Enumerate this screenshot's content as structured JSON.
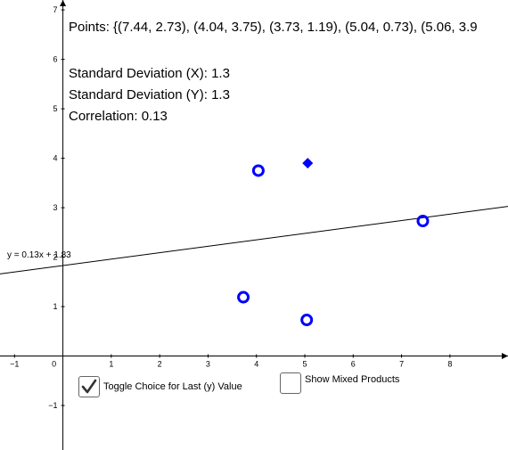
{
  "points_text": "Points: {(7.44, 2.73), (4.04, 3.75), (3.73, 1.19), (5.04, 0.73), (5.06, 3.9",
  "std_x_text": "Standard Deviation (X): 1.3",
  "std_y_text": "Standard Deviation (Y): 1.3",
  "correlation_text": "Correlation: 0.13",
  "line_label": "y = 0.13x + 1.83",
  "checkboxes": [
    {
      "label": "Toggle Choice for Last (y) Value",
      "checked": true
    },
    {
      "label": "Show Mixed Products",
      "checked": false
    }
  ],
  "colors": {
    "points": "#0000ff",
    "axes": "#000000"
  },
  "chart_data": {
    "type": "scatter",
    "xlim": [
      -1.3,
      9.2
    ],
    "ylim": [
      -1.9,
      7.2
    ],
    "x_ticks": [
      -1,
      1,
      2,
      3,
      4,
      5,
      6,
      7,
      8
    ],
    "y_ticks": [
      -1,
      1,
      2,
      3,
      4,
      5,
      6,
      7
    ],
    "origin_label": "0",
    "points": [
      {
        "x": 7.44,
        "y": 2.73
      },
      {
        "x": 4.04,
        "y": 3.75
      },
      {
        "x": 3.73,
        "y": 1.19
      },
      {
        "x": 5.04,
        "y": 0.73
      }
    ],
    "highlight_point": {
      "x": 5.06,
      "y": 3.9,
      "marker": "diamond"
    },
    "fit_line": {
      "slope": 0.13,
      "intercept": 1.83
    }
  }
}
